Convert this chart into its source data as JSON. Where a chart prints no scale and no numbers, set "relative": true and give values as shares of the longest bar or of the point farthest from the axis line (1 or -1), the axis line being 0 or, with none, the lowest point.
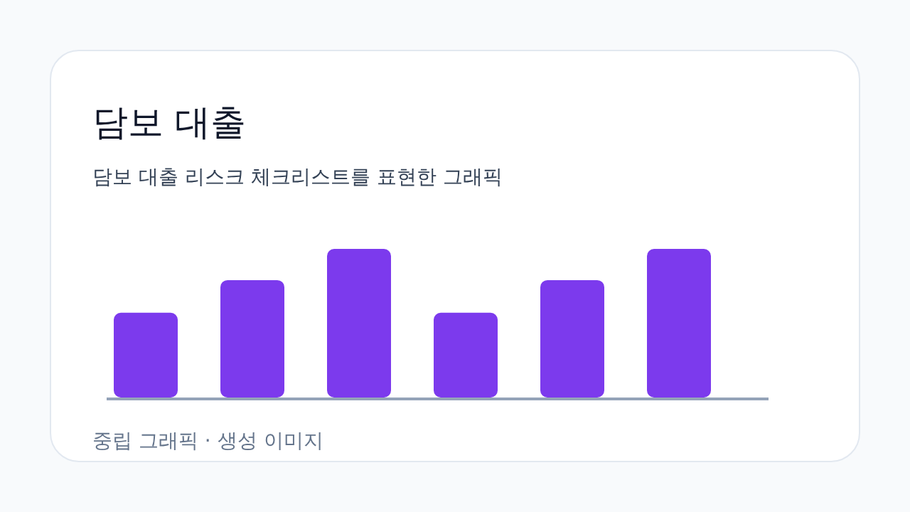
{
  "chart_data": {
    "type": "bar",
    "title": "담보 대출",
    "subtitle": "담보 대출 리스크 체크리스트를 표현한 그래픽",
    "categories": [
      null,
      null,
      null,
      null,
      null,
      null
    ],
    "values": [
      0.57,
      0.79,
      1,
      0.57,
      0.79,
      1
    ],
    "color": "#7c3aed",
    "relative": true,
    "annotations": [
      "중립 그래픽 · 생성 이미지"
    ]
  }
}
